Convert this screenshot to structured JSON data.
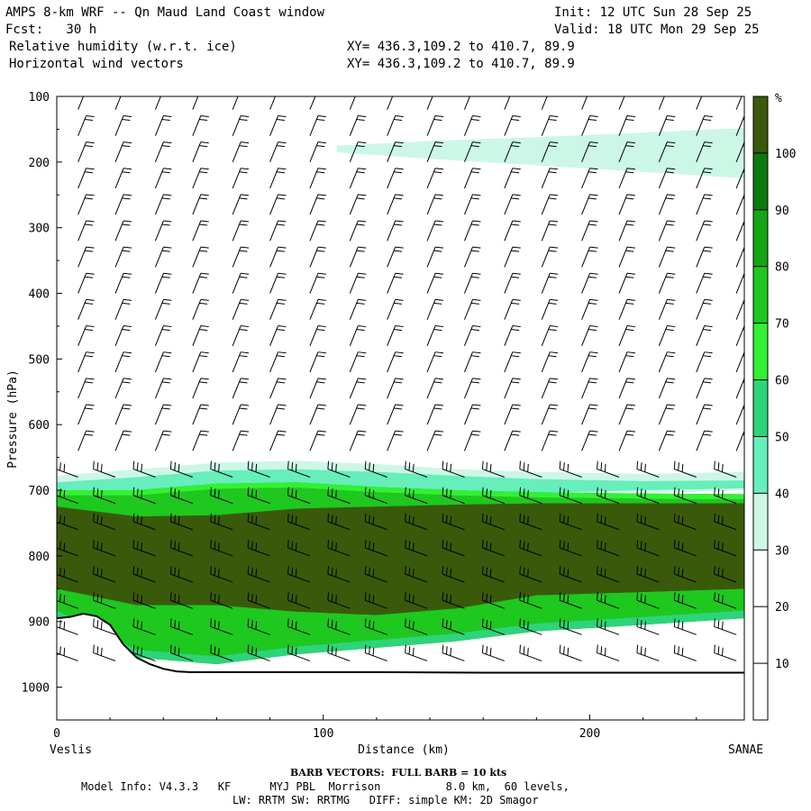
{
  "header": {
    "title": "AMPS 8-km WRF -- Qn Maud Land Coast window",
    "init": "Init: 12 UTC Sun 28 Sep 25",
    "fcst": "Fcst:   30 h",
    "valid": "Valid: 18 UTC Mon 29 Sep 25",
    "field1": "Relative humidity (w.r.t. ice)",
    "field1_xy": "XY= 436.3,109.2 to 410.7, 89.9",
    "field2": "Horizontal wind vectors",
    "field2_xy": "XY= 436.3,109.2 to 410.7, 89.9"
  },
  "footer": {
    "barb_note": "BARB VECTORS:  FULL BARB = 10 kts",
    "model_line1": "Model Info: V4.3.3   KF      MYJ PBL  Morrison          8.0 km,  60 levels,",
    "model_line2": "LW: RRTM SW: RRTMG   DIFF: simple KM: 2D Smagor"
  },
  "colors": {
    "rh_10_20": "#ffffff",
    "rh_20_30": "#ffffff",
    "rh_30_40": "#ccf7e6",
    "rh_40_50": "#66eebb",
    "rh_50_60": "#2dd47a",
    "rh_60_70": "#33f033",
    "rh_70_80": "#1ec81e",
    "rh_80_90": "#14a514",
    "rh_90_100": "#0d7a0d",
    "rh_100_plus": "#3a5a0b",
    "barb": "#000000",
    "terrain": "#000000"
  },
  "chart_data": {
    "type": "heatmap",
    "title": "Relative humidity (w.r.t. ice) and horizontal wind vectors, cross-section",
    "xlabel": "Distance (km)",
    "ylabel": "Pressure (hPa)",
    "xlim": [
      0,
      258
    ],
    "ylim": [
      1050,
      100
    ],
    "x_ticks": [
      0,
      100,
      200
    ],
    "y_ticks": [
      100,
      200,
      300,
      400,
      500,
      600,
      700,
      800,
      900,
      1000
    ],
    "x_start_label": "Veslis",
    "x_end_label": "SANAE",
    "colorbar": {
      "unit": "%",
      "levels": [
        10,
        20,
        30,
        40,
        50,
        60,
        70,
        80,
        90,
        100
      ],
      "colors": [
        "#ffffff",
        "#ffffff",
        "#ffffff",
        "#ccf7e6",
        "#66eebb",
        "#2dd47a",
        "#33f033",
        "#1ec81e",
        "#14a514",
        "#0d7a0d",
        "#3a5a0b"
      ]
    },
    "terrain_surface_hPa": {
      "x": [
        0,
        5,
        10,
        15,
        20,
        25,
        30,
        35,
        40,
        45,
        50,
        60,
        80,
        120,
        160,
        200,
        240,
        258
      ],
      "p": [
        895,
        893,
        888,
        892,
        905,
        935,
        955,
        965,
        972,
        976,
        977,
        977,
        977,
        977,
        978,
        978,
        978,
        978
      ]
    },
    "rh_layers": [
      {
        "range": "30-40",
        "top_hPa": [
          678,
          668,
          658,
          655,
          660,
          668,
          672,
          675,
          672
        ],
        "bottom_hPa": [
          730,
          725,
          720,
          718,
          715,
          712,
          710,
          705,
          700
        ]
      },
      {
        "range": "40-50",
        "top_hPa": [
          688,
          680,
          670,
          668,
          672,
          678,
          683,
          686,
          685
        ],
        "bottom_hPa": [
          725,
          720,
          715,
          712,
          710,
          706,
          704,
          700,
          697
        ]
      },
      {
        "range": "70-90",
        "top_hPa": [
          700,
          700,
          690,
          688,
          695,
          700,
          703,
          705,
          706
        ],
        "bottom_hPa": [
          895,
          955,
          965,
          950,
          940,
          930,
          915,
          905,
          895
        ]
      },
      {
        "range": "100+",
        "top_hPa": [
          725,
          740,
          738,
          728,
          725,
          722,
          720,
          720,
          720
        ],
        "bottom_hPa": [
          850,
          875,
          875,
          885,
          890,
          880,
          860,
          855,
          850
        ]
      },
      {
        "range": "30-40 (upper band)",
        "top_hPa": [
          175,
          168,
          162,
          155,
          148
        ],
        "bottom_hPa": [
          185,
          195,
          205,
          215,
          225
        ]
      }
    ],
    "rh_layer_x_km": [
      0,
      30,
      60,
      90,
      120,
      150,
      180,
      220,
      258
    ],
    "rh_upper_band_x_km": [
      105,
      140,
      180,
      220,
      258
    ],
    "wind_barb_columns_km": [
      8,
      22,
      37,
      51,
      66,
      80,
      95,
      110,
      124,
      139,
      153,
      168,
      182,
      197,
      211,
      226,
      240,
      255
    ],
    "wind_barb_levels_hPa": [
      120,
      160,
      200,
      240,
      280,
      320,
      360,
      400,
      440,
      480,
      520,
      560,
      600,
      640,
      680,
      720,
      760,
      800,
      840,
      880,
      920,
      960
    ],
    "barb_unit_kts": 10
  }
}
